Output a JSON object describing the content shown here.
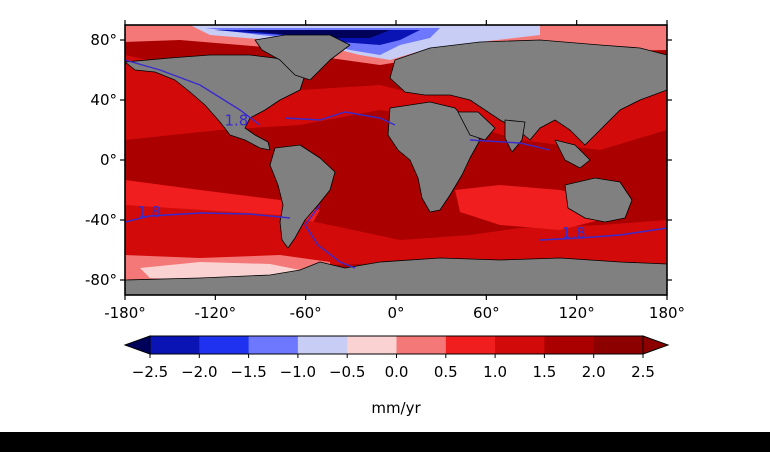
{
  "chart_data": {
    "type": "heatmap",
    "map_projection": "equirectangular",
    "x_ticks": [
      "-180°",
      "-120°",
      "-60°",
      "0°",
      "60°",
      "120°",
      "180°"
    ],
    "y_ticks": [
      "80°",
      "40°",
      "0°",
      "-40°",
      "-80°"
    ],
    "xlim": [
      -180,
      180
    ],
    "ylim": [
      -90,
      90
    ],
    "contour_labels": [
      {
        "text": "1.8",
        "lon": -106,
        "lat": 23
      },
      {
        "text": "1.8",
        "lon": -164,
        "lat": -38
      },
      {
        "text": "1.8",
        "lon": 118,
        "lat": -52
      }
    ],
    "colorbar": {
      "unit_label": "mm/yr",
      "ticks": [
        "−2.5",
        "−2.0",
        "−1.5",
        "−1.0",
        "−0.5",
        "0.0",
        "0.5",
        "1.0",
        "1.5",
        "2.0",
        "2.5"
      ],
      "levels": [
        -2.5,
        -2.0,
        -1.5,
        -1.0,
        -0.5,
        0.0,
        0.5,
        1.0,
        1.5,
        2.0,
        2.5
      ],
      "colors": [
        "#00025a",
        "#0a14b4",
        "#1e32f0",
        "#6e78ff",
        "#c8cdf5",
        "#fad2d2",
        "#f57878",
        "#f01e1e",
        "#d20a0a",
        "#aa0000",
        "#8c0000"
      ],
      "extend": "both"
    },
    "land_color": "#808080"
  }
}
